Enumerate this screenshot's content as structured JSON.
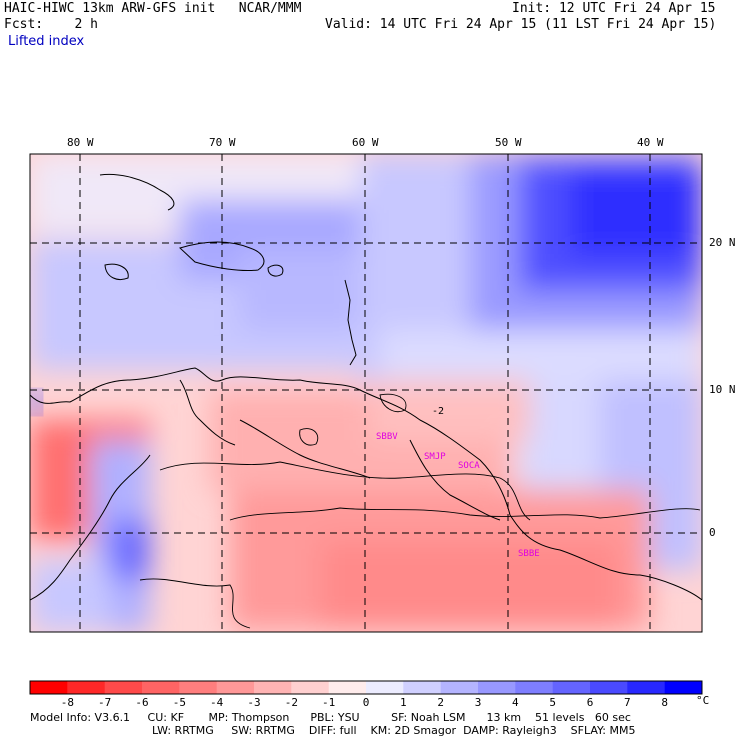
{
  "header": {
    "title": "HAIC-HIWC 13km ARW-GFS init   NCAR/MMM",
    "init": "Init: 12 UTC Fri 24 Apr 15",
    "fcst": "Fcst:    2 h",
    "valid": "Valid: 14 UTC Fri 24 Apr 15 (11 LST Fri 24 Apr 15)",
    "field": "Lifted index"
  },
  "map": {
    "lon_labels": [
      "80 W",
      "70 W",
      "60 W",
      "50 W",
      "40 W"
    ],
    "lat_labels": [
      "20 N",
      "10 N",
      "0"
    ],
    "stations": [
      "SBBV",
      "SMJP",
      "SOCA",
      "SBBE"
    ],
    "contour_label": "-2"
  },
  "colorbar": {
    "labels": [
      "-8",
      "-7",
      "-6",
      "-5",
      "-4",
      "-3",
      "-2",
      "-1",
      "0",
      "1",
      "2",
      "3",
      "4",
      "5",
      "6",
      "7",
      "8"
    ],
    "unit": "°C",
    "colors": [
      "#ff0000",
      "#ff2828",
      "#ff4a4a",
      "#ff6464",
      "#ff7e7e",
      "#ff9898",
      "#ffb4b4",
      "#ffd0d0",
      "#ffecec",
      "#ececff",
      "#d0d0ff",
      "#b4b4ff",
      "#9898ff",
      "#7e7eff",
      "#6464ff",
      "#4a4aff",
      "#2828ff",
      "#0000ff"
    ]
  },
  "footer": {
    "line1": "Model Info: V3.6.1     CU: KF       MP: Thompson      PBL: YSU         SF: Noah LSM      13 km    51 levels   60 sec",
    "line2": "LW: RRTMG     SW: RRTMG    DIFF: full    KM: 2D Smagor  DAMP: Rayleigh3    SFLAY: MM5"
  }
}
